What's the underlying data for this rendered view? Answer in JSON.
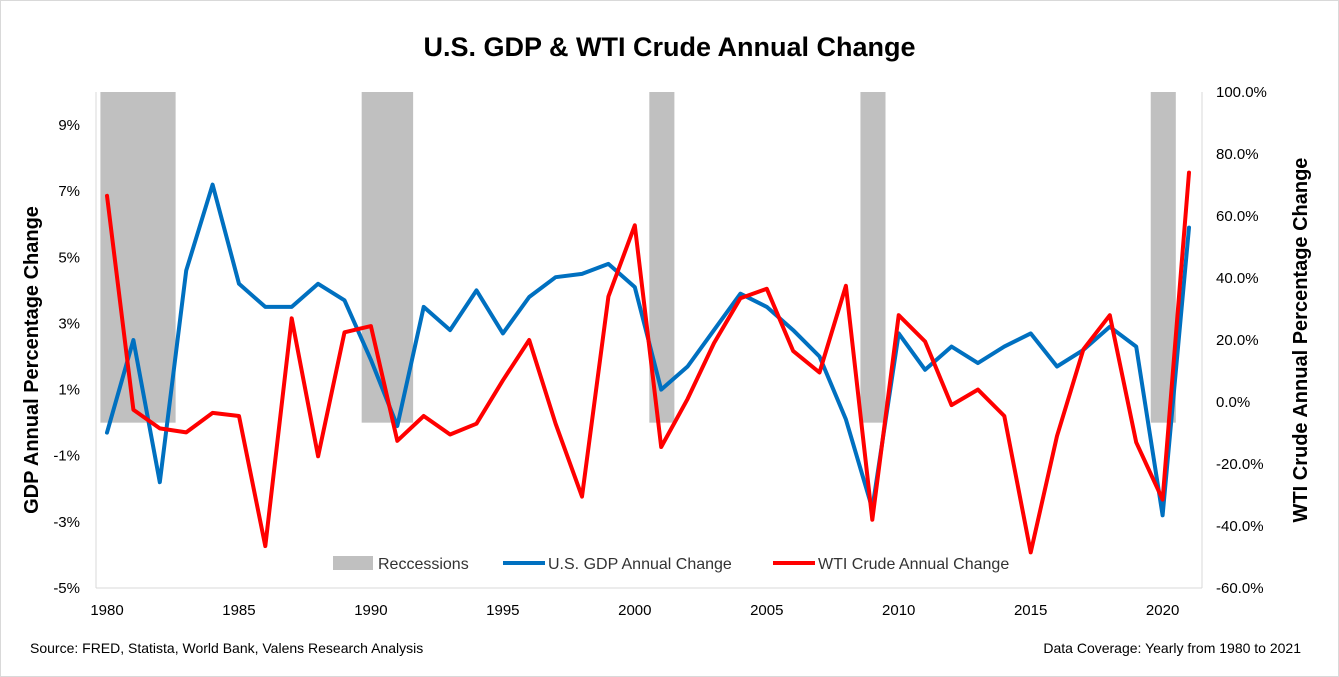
{
  "chart_data": {
    "type": "line",
    "title": "U.S. GDP & WTI Crude Annual Change",
    "ylabel_left": "GDP Annual Percentage Change",
    "ylabel_right": "WTI Crude Annual Percentage Change",
    "x": [
      1980,
      1981,
      1982,
      1983,
      1984,
      1985,
      1986,
      1987,
      1988,
      1989,
      1990,
      1991,
      1992,
      1993,
      1994,
      1995,
      1996,
      1997,
      1998,
      1999,
      2000,
      2001,
      2002,
      2003,
      2004,
      2005,
      2006,
      2007,
      2008,
      2009,
      2010,
      2011,
      2012,
      2013,
      2014,
      2015,
      2016,
      2017,
      2018,
      2019,
      2020,
      2021
    ],
    "x_ticks": [
      "1980",
      "1985",
      "1990",
      "1995",
      "2000",
      "2005",
      "2010",
      "2015",
      "2020"
    ],
    "xlim": [
      1980,
      2021
    ],
    "y_left_ticks": [
      "9%",
      "7%",
      "5%",
      "3%",
      "1%",
      "-1%",
      "-3%",
      "-5%"
    ],
    "y_left_lim": [
      -5,
      10
    ],
    "y_right_ticks": [
      "100.0%",
      "80.0%",
      "60.0%",
      "40.0%",
      "20.0%",
      "0.0%",
      "-20.0%",
      "-40.0%",
      "-60.0%"
    ],
    "y_right_lim": [
      -60,
      100
    ],
    "series": [
      {
        "name": "U.S. GDP Annual Change",
        "axis": "left",
        "color": "#0070c0",
        "values": [
          -0.3,
          2.5,
          -1.8,
          4.6,
          7.2,
          4.2,
          3.5,
          3.5,
          4.2,
          3.7,
          1.9,
          -0.1,
          3.5,
          2.8,
          4.0,
          2.7,
          3.8,
          4.4,
          4.5,
          4.8,
          4.1,
          1.0,
          1.7,
          2.8,
          3.9,
          3.5,
          2.8,
          2.0,
          0.1,
          -2.6,
          2.7,
          1.6,
          2.3,
          1.8,
          2.3,
          2.7,
          1.7,
          2.2,
          2.9,
          2.3,
          -2.8,
          5.9
        ]
      },
      {
        "name": "WTI Crude Annual Change",
        "axis": "right",
        "color": "#ff0000",
        "values": [
          66.5,
          -2.5,
          -8.5,
          -9.8,
          -3.5,
          -4.5,
          -46.5,
          27,
          -17.5,
          22.5,
          24.5,
          -12.5,
          -4.5,
          -10.5,
          -7,
          7,
          20,
          -7,
          -30.5,
          34,
          57,
          -14.5,
          1,
          19,
          33.5,
          36.5,
          16.5,
          9.5,
          37.5,
          -38,
          28,
          19.5,
          -1,
          4,
          -4.5,
          -48.5,
          -11,
          17,
          28,
          -13,
          -31.5,
          74
        ]
      }
    ],
    "recessions": [
      {
        "start": 1979.75,
        "end": 1982.6
      },
      {
        "start": 1989.65,
        "end": 1991.6
      },
      {
        "start": 2000.55,
        "end": 2001.5
      },
      {
        "start": 2008.55,
        "end": 2009.5
      },
      {
        "start": 2019.55,
        "end": 2020.5
      }
    ],
    "legend": {
      "position": "bottom-inside",
      "items": [
        {
          "label": "Reccessions",
          "color": "#c0c0c0",
          "kind": "box"
        },
        {
          "label": "U.S. GDP Annual Change",
          "color": "#0070c0",
          "kind": "line"
        },
        {
          "label": "WTI Crude Annual Change",
          "color": "#ff0000",
          "kind": "line"
        }
      ]
    },
    "grid": false
  },
  "footer": {
    "source": "Source: FRED, Statista, World Bank, Valens Research Analysis",
    "coverage": "Data Coverage: Yearly from 1980 to 2021"
  }
}
